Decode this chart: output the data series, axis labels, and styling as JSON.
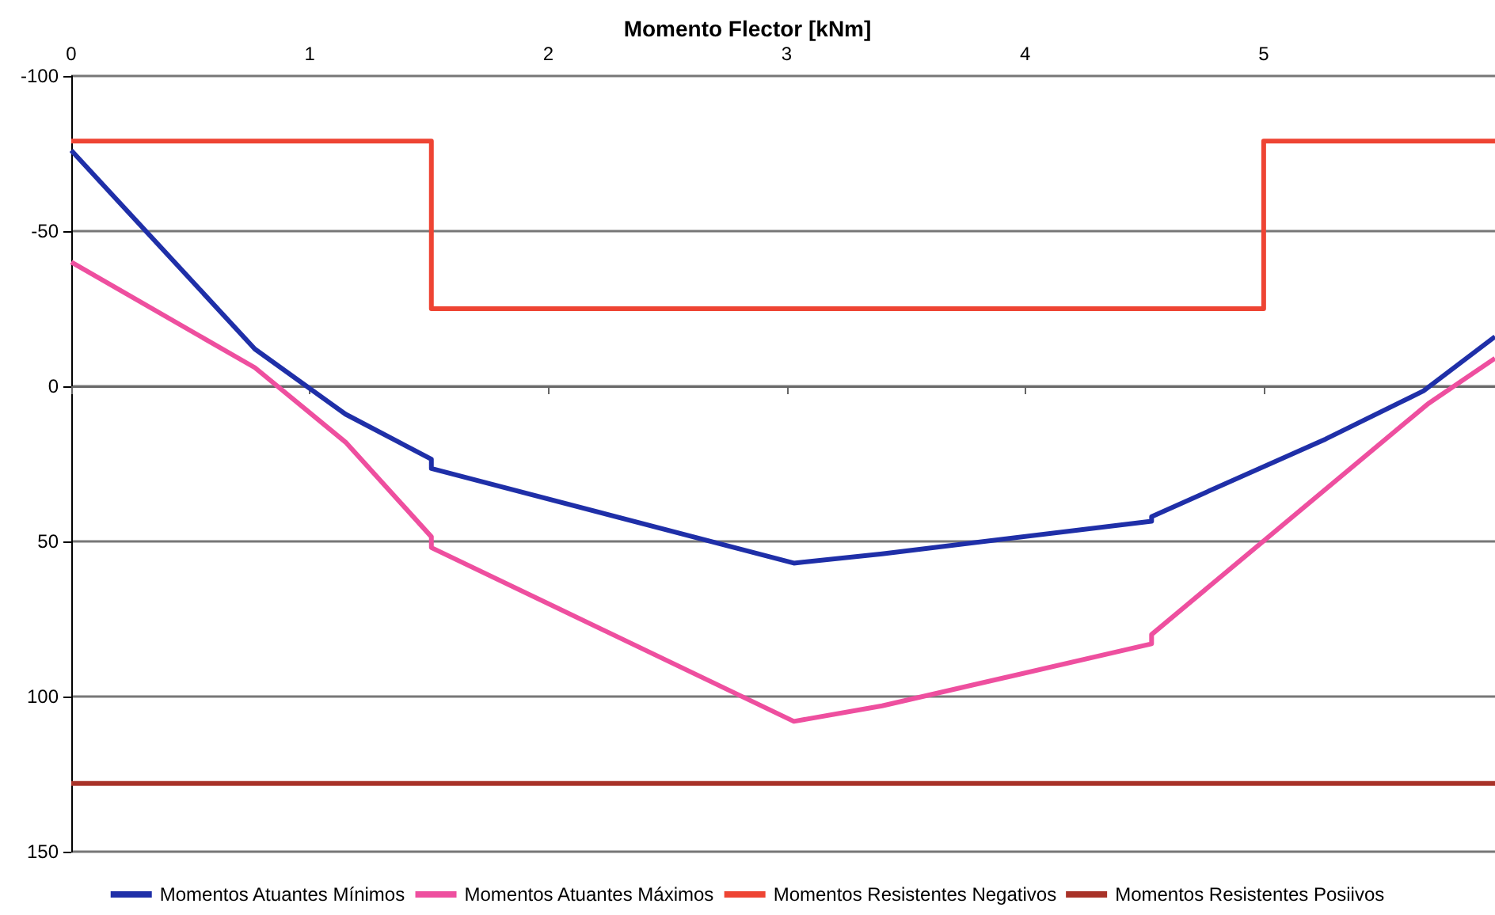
{
  "chart_data": {
    "type": "line",
    "title": "Momento Flector [kNm]",
    "xlim": [
      0,
      5.97
    ],
    "xticks": [
      0,
      1,
      2,
      3,
      4,
      5
    ],
    "ylim": [
      150,
      -100
    ],
    "yticks": [
      -100,
      -50,
      0,
      50,
      100,
      150
    ],
    "grid": "y",
    "legend": "bottom",
    "marker": "none",
    "line_style": "solid",
    "series": [
      {
        "name": "Momentos Atuantes Mínimos",
        "color": "#1f2fa8",
        "x": [
          0,
          0.77,
          1.15,
          1.51,
          1.51,
          3.03,
          3.4,
          4.53,
          4.53,
          5.26,
          5.67,
          5.97
        ],
        "values": [
          -76,
          -12,
          9,
          23.5,
          26.5,
          57,
          54,
          43.5,
          42,
          17,
          1.5,
          -16
        ]
      },
      {
        "name": "Momentos Atuantes Máximos",
        "color": "#ee4f9f",
        "x": [
          0,
          0.77,
          1.15,
          1.51,
          1.51,
          3.03,
          3.4,
          4.53,
          4.53,
          5.69,
          5.97
        ],
        "values": [
          -40,
          -6,
          18,
          48.5,
          52,
          108,
          103,
          83,
          80,
          5.6,
          -9
        ]
      },
      {
        "name": "Momentos Resistentes Negativos",
        "color": "#ee4433",
        "x": [
          0,
          1.51,
          1.51,
          5,
          5,
          5.97
        ],
        "values": [
          -79,
          -79,
          -25,
          -25,
          -79,
          -79
        ]
      },
      {
        "name": "Momentos Resistentes Posiivos",
        "color": "#a83228",
        "x": [
          0,
          5.97
        ],
        "values": [
          128,
          128
        ]
      }
    ]
  }
}
